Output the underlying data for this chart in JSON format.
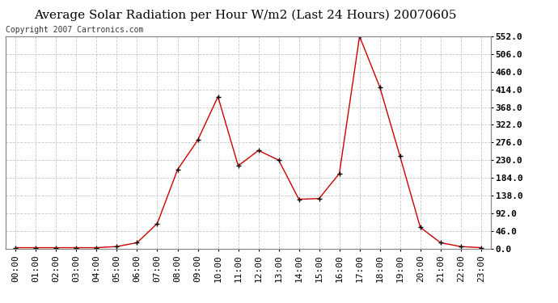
{
  "title": "Average Solar Radiation per Hour W/m2 (Last 24 Hours) 20070605",
  "copyright_text": "Copyright 2007 Cartronics.com",
  "hours": [
    "00:00",
    "01:00",
    "02:00",
    "03:00",
    "04:00",
    "05:00",
    "06:00",
    "07:00",
    "08:00",
    "09:00",
    "10:00",
    "11:00",
    "12:00",
    "13:00",
    "14:00",
    "15:00",
    "16:00",
    "17:00",
    "18:00",
    "19:00",
    "20:00",
    "21:00",
    "22:00",
    "23:00"
  ],
  "values": [
    2,
    2,
    2,
    2,
    2,
    5,
    15,
    65,
    205,
    282,
    395,
    215,
    255,
    230,
    128,
    130,
    195,
    552,
    420,
    240,
    55,
    15,
    5,
    2
  ],
  "line_color": "#cc0000",
  "marker_color": "#000000",
  "bg_color": "#ffffff",
  "grid_color": "#c8c8c8",
  "ylim": [
    0,
    552
  ],
  "yticks": [
    0.0,
    46.0,
    92.0,
    138.0,
    184.0,
    230.0,
    276.0,
    322.0,
    368.0,
    414.0,
    460.0,
    506.0,
    552.0
  ],
  "title_fontsize": 11,
  "copyright_fontsize": 7,
  "axis_fontsize": 8
}
